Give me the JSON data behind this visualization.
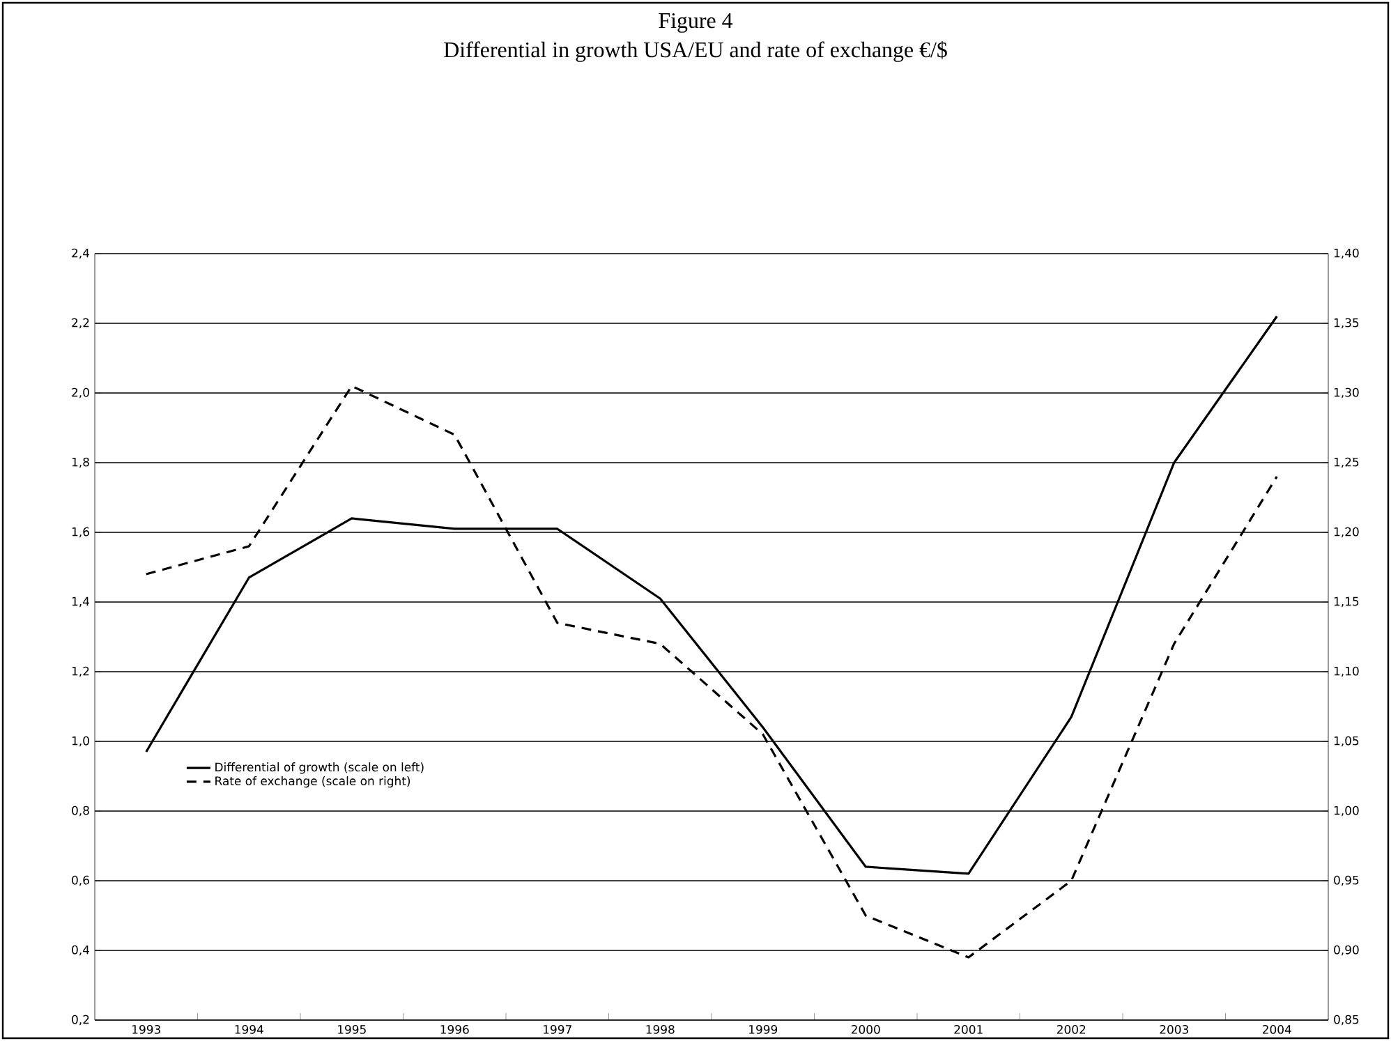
{
  "chart_data": {
    "type": "line",
    "title": "Figure 4",
    "subtitle": "Differential in growth USA/EU and rate of exchange €/$",
    "categories": [
      "1993",
      "1994",
      "1995",
      "1996",
      "1997",
      "1998",
      "1999",
      "2000",
      "2001",
      "2002",
      "2003",
      "2004"
    ],
    "series": [
      {
        "name": "Differential of growth (scale on left)",
        "color": "#000000",
        "line_style": "solid",
        "values": [
          0.97,
          1.47,
          1.64,
          1.61,
          1.61,
          1.41,
          1.04,
          0.64,
          0.62,
          1.07,
          1.8,
          2.22
        ]
      },
      {
        "name": "Rate of exchange (scale on right)",
        "color": "#000000",
        "line_style": "dashed",
        "axis": "y2",
        "values": [
          1.17,
          1.19,
          1.305,
          1.27,
          1.135,
          1.12,
          1.055,
          0.925,
          0.895,
          0.95,
          1.12,
          1.24
        ]
      }
    ],
    "ylim": [
      0.2,
      2.4
    ],
    "yticks": [
      {
        "value": 0.2,
        "label": "0,2"
      },
      {
        "value": 0.4,
        "label": "0,4"
      },
      {
        "value": 0.6,
        "label": "0,6"
      },
      {
        "value": 0.8,
        "label": "0,8"
      },
      {
        "value": 1.0,
        "label": "1,0"
      },
      {
        "value": 1.2,
        "label": "1,2"
      },
      {
        "value": 1.4,
        "label": "1,4"
      },
      {
        "value": 1.6,
        "label": "1,6"
      },
      {
        "value": 1.8,
        "label": "1,8"
      },
      {
        "value": 2.0,
        "label": "2,0"
      },
      {
        "value": 2.2,
        "label": "2,2"
      },
      {
        "value": 2.4,
        "label": "2,4"
      }
    ],
    "y2lim": [
      0.85,
      1.4
    ],
    "y2ticks": [
      {
        "value": 0.85,
        "label": "0,85"
      },
      {
        "value": 0.9,
        "label": "0,90"
      },
      {
        "value": 0.95,
        "label": "0,95"
      },
      {
        "value": 1.0,
        "label": "1,00"
      },
      {
        "value": 1.05,
        "label": "1,05"
      },
      {
        "value": 1.1,
        "label": "1,10"
      },
      {
        "value": 1.15,
        "label": "1,15"
      },
      {
        "value": 1.2,
        "label": "1,20"
      },
      {
        "value": 1.25,
        "label": "1,25"
      },
      {
        "value": 1.3,
        "label": "1,30"
      },
      {
        "value": 1.35,
        "label": "1,35"
      },
      {
        "value": 1.4,
        "label": "1,40"
      }
    ],
    "grid": "y",
    "legend": "left",
    "marker": "none"
  }
}
